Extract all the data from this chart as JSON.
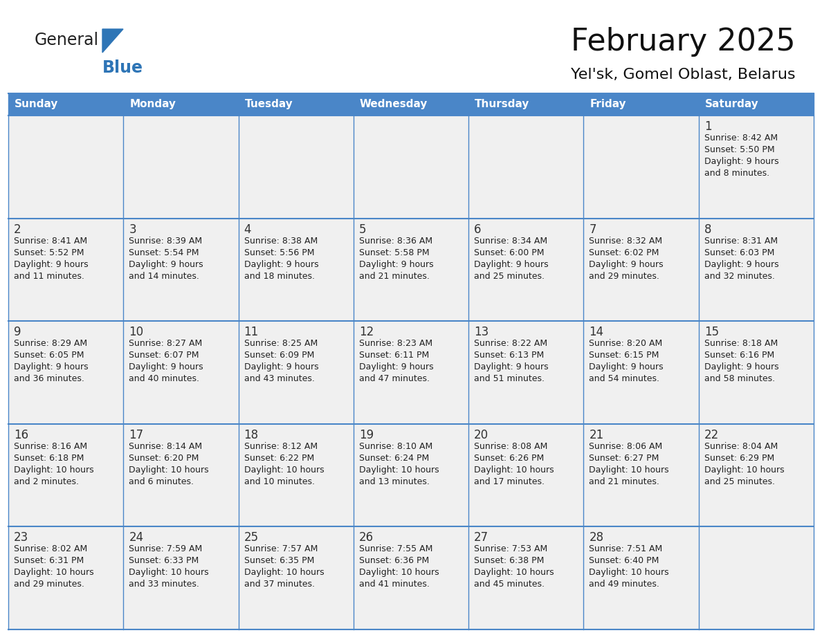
{
  "title": "February 2025",
  "subtitle": "Yel'sk, Gomel Oblast, Belarus",
  "days_of_week": [
    "Sunday",
    "Monday",
    "Tuesday",
    "Wednesday",
    "Thursday",
    "Friday",
    "Saturday"
  ],
  "header_bg": "#4a86c8",
  "header_text": "#FFFFFF",
  "cell_bg_odd": "#F0F0F0",
  "cell_bg_even": "#FFFFFF",
  "cell_text": "#222222",
  "day_num_color": "#333333",
  "grid_line_color": "#4a86c8",
  "title_color": "#111111",
  "subtitle_color": "#111111",
  "logo_general_color": "#222222",
  "logo_blue_color": "#2E75B6",
  "calendar_data": [
    [
      null,
      null,
      null,
      null,
      null,
      null,
      {
        "day": 1,
        "sunrise": "8:42 AM",
        "sunset": "5:50 PM",
        "daylight": "9 hours",
        "daylight2": "and 8 minutes."
      }
    ],
    [
      {
        "day": 2,
        "sunrise": "8:41 AM",
        "sunset": "5:52 PM",
        "daylight": "9 hours",
        "daylight2": "and 11 minutes."
      },
      {
        "day": 3,
        "sunrise": "8:39 AM",
        "sunset": "5:54 PM",
        "daylight": "9 hours",
        "daylight2": "and 14 minutes."
      },
      {
        "day": 4,
        "sunrise": "8:38 AM",
        "sunset": "5:56 PM",
        "daylight": "9 hours",
        "daylight2": "and 18 minutes."
      },
      {
        "day": 5,
        "sunrise": "8:36 AM",
        "sunset": "5:58 PM",
        "daylight": "9 hours",
        "daylight2": "and 21 minutes."
      },
      {
        "day": 6,
        "sunrise": "8:34 AM",
        "sunset": "6:00 PM",
        "daylight": "9 hours",
        "daylight2": "and 25 minutes."
      },
      {
        "day": 7,
        "sunrise": "8:32 AM",
        "sunset": "6:02 PM",
        "daylight": "9 hours",
        "daylight2": "and 29 minutes."
      },
      {
        "day": 8,
        "sunrise": "8:31 AM",
        "sunset": "6:03 PM",
        "daylight": "9 hours",
        "daylight2": "and 32 minutes."
      }
    ],
    [
      {
        "day": 9,
        "sunrise": "8:29 AM",
        "sunset": "6:05 PM",
        "daylight": "9 hours",
        "daylight2": "and 36 minutes."
      },
      {
        "day": 10,
        "sunrise": "8:27 AM",
        "sunset": "6:07 PM",
        "daylight": "9 hours",
        "daylight2": "and 40 minutes."
      },
      {
        "day": 11,
        "sunrise": "8:25 AM",
        "sunset": "6:09 PM",
        "daylight": "9 hours",
        "daylight2": "and 43 minutes."
      },
      {
        "day": 12,
        "sunrise": "8:23 AM",
        "sunset": "6:11 PM",
        "daylight": "9 hours",
        "daylight2": "and 47 minutes."
      },
      {
        "day": 13,
        "sunrise": "8:22 AM",
        "sunset": "6:13 PM",
        "daylight": "9 hours",
        "daylight2": "and 51 minutes."
      },
      {
        "day": 14,
        "sunrise": "8:20 AM",
        "sunset": "6:15 PM",
        "daylight": "9 hours",
        "daylight2": "and 54 minutes."
      },
      {
        "day": 15,
        "sunrise": "8:18 AM",
        "sunset": "6:16 PM",
        "daylight": "9 hours",
        "daylight2": "and 58 minutes."
      }
    ],
    [
      {
        "day": 16,
        "sunrise": "8:16 AM",
        "sunset": "6:18 PM",
        "daylight": "10 hours",
        "daylight2": "and 2 minutes."
      },
      {
        "day": 17,
        "sunrise": "8:14 AM",
        "sunset": "6:20 PM",
        "daylight": "10 hours",
        "daylight2": "and 6 minutes."
      },
      {
        "day": 18,
        "sunrise": "8:12 AM",
        "sunset": "6:22 PM",
        "daylight": "10 hours",
        "daylight2": "and 10 minutes."
      },
      {
        "day": 19,
        "sunrise": "8:10 AM",
        "sunset": "6:24 PM",
        "daylight": "10 hours",
        "daylight2": "and 13 minutes."
      },
      {
        "day": 20,
        "sunrise": "8:08 AM",
        "sunset": "6:26 PM",
        "daylight": "10 hours",
        "daylight2": "and 17 minutes."
      },
      {
        "day": 21,
        "sunrise": "8:06 AM",
        "sunset": "6:27 PM",
        "daylight": "10 hours",
        "daylight2": "and 21 minutes."
      },
      {
        "day": 22,
        "sunrise": "8:04 AM",
        "sunset": "6:29 PM",
        "daylight": "10 hours",
        "daylight2": "and 25 minutes."
      }
    ],
    [
      {
        "day": 23,
        "sunrise": "8:02 AM",
        "sunset": "6:31 PM",
        "daylight": "10 hours",
        "daylight2": "and 29 minutes."
      },
      {
        "day": 24,
        "sunrise": "7:59 AM",
        "sunset": "6:33 PM",
        "daylight": "10 hours",
        "daylight2": "and 33 minutes."
      },
      {
        "day": 25,
        "sunrise": "7:57 AM",
        "sunset": "6:35 PM",
        "daylight": "10 hours",
        "daylight2": "and 37 minutes."
      },
      {
        "day": 26,
        "sunrise": "7:55 AM",
        "sunset": "6:36 PM",
        "daylight": "10 hours",
        "daylight2": "and 41 minutes."
      },
      {
        "day": 27,
        "sunrise": "7:53 AM",
        "sunset": "6:38 PM",
        "daylight": "10 hours",
        "daylight2": "and 45 minutes."
      },
      {
        "day": 28,
        "sunrise": "7:51 AM",
        "sunset": "6:40 PM",
        "daylight": "10 hours",
        "daylight2": "and 49 minutes."
      },
      null
    ]
  ]
}
